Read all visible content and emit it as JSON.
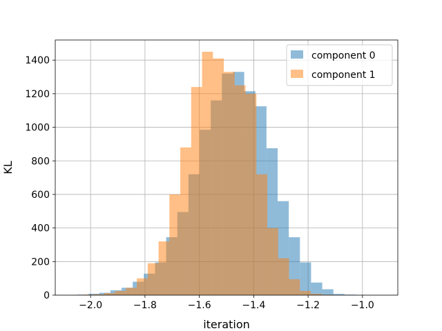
{
  "chart_data": {
    "type": "histogram",
    "title": "",
    "xlabel": "iteration",
    "ylabel": "KL",
    "xlim": [
      -2.13,
      -0.87
    ],
    "ylim": [
      0,
      1520
    ],
    "xticks": [
      -2.0,
      -1.8,
      -1.6,
      -1.4,
      -1.2,
      -1.0
    ],
    "xtick_labels": [
      "−2.0",
      "−1.8",
      "−1.6",
      "−1.4",
      "−1.2",
      "−1.0"
    ],
    "yticks": [
      0,
      200,
      400,
      600,
      800,
      1000,
      1200,
      1400
    ],
    "ytick_labels": [
      "0",
      "200",
      "400",
      "600",
      "800",
      "1000",
      "1200",
      "1400"
    ],
    "grid": true,
    "legend_position": "top-right",
    "series": [
      {
        "name": "component 0",
        "color": "#1f77b4",
        "alpha": 0.5,
        "bin_edges": [
          -2.05,
          -2.009,
          -1.968,
          -1.927,
          -1.886,
          -1.845,
          -1.804,
          -1.763,
          -1.722,
          -1.681,
          -1.64,
          -1.599,
          -1.558,
          -1.517,
          -1.476,
          -1.435,
          -1.394,
          -1.353,
          -1.312,
          -1.271,
          -1.23,
          -1.189,
          -1.148,
          -1.107,
          -1.066,
          -1.025,
          -0.984
        ],
        "counts": [
          3,
          8,
          14,
          29,
          44,
          80,
          128,
          195,
          345,
          495,
          720,
          985,
          1160,
          1320,
          1330,
          1215,
          1125,
          875,
          560,
          345,
          195,
          75,
          35,
          7,
          3,
          0
        ]
      },
      {
        "name": "component 1",
        "color": "#ff7f0e",
        "alpha": 0.5,
        "bin_edges": [
          -2.07,
          -2.03,
          -1.99,
          -1.95,
          -1.91,
          -1.87,
          -1.83,
          -1.79,
          -1.75,
          -1.71,
          -1.67,
          -1.63,
          -1.59,
          -1.55,
          -1.51,
          -1.47,
          -1.43,
          -1.39,
          -1.35,
          -1.31,
          -1.27,
          -1.23,
          -1.19,
          -1.15,
          -1.11,
          -1.07,
          -1.03
        ],
        "counts": [
          1,
          3,
          5,
          12,
          25,
          44,
          100,
          190,
          320,
          600,
          880,
          1240,
          1450,
          1410,
          1330,
          1250,
          1200,
          720,
          400,
          220,
          95,
          25,
          8,
          3,
          1,
          0
        ]
      }
    ]
  }
}
